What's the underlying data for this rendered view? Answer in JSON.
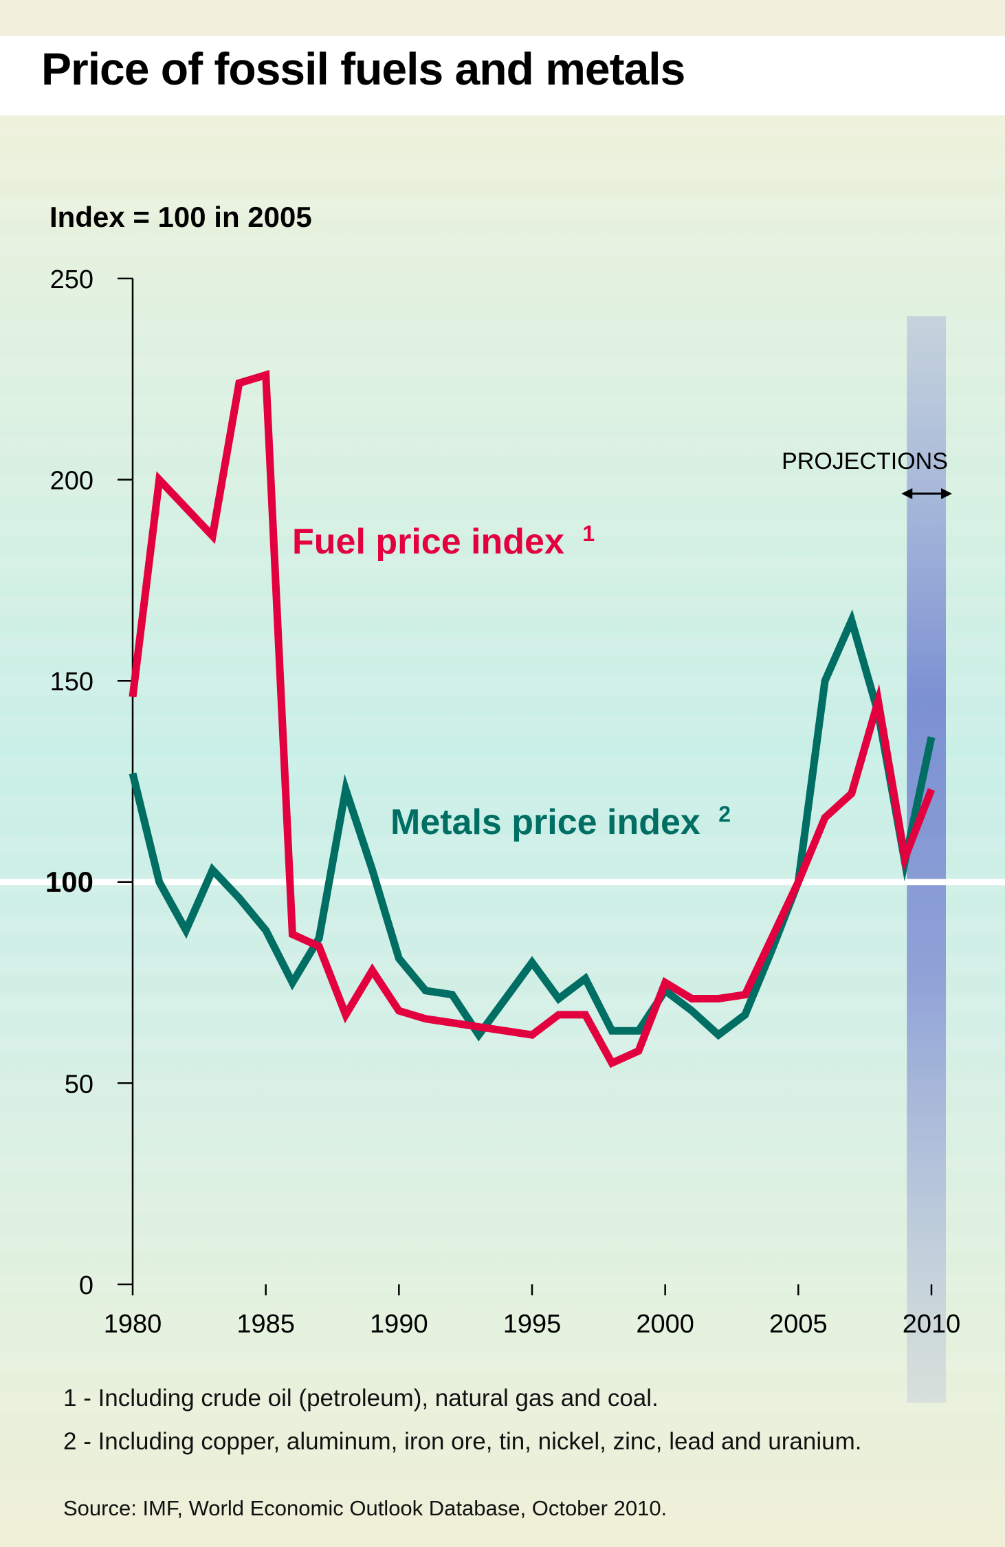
{
  "title": "Price of fossil fuels and metals",
  "footnotes": [
    "1 - Including crude oil (petroleum), natural gas and coal.",
    "2 - Including copper, aluminum, iron ore, tin, nickel, zinc, lead and uranium."
  ],
  "source": "Source: IMF, World Economic Outlook Database, October 2010.",
  "colors": {
    "fuel": "#e3003f",
    "metals": "#006e63",
    "projection_band": "#7f8fd0",
    "background": "#c8efe8"
  },
  "chart_data": {
    "type": "line",
    "ylabel": "Index = 100 in 2005",
    "ylim": [
      0,
      250
    ],
    "yticks": [
      "0",
      "50",
      "100",
      "150",
      "200",
      "250"
    ],
    "xlim": [
      1980,
      2010
    ],
    "xticks": [
      "1980",
      "1985",
      "1990",
      "1995",
      "2000",
      "2005",
      "2010"
    ],
    "reference_line": 100,
    "projection": {
      "label": "PROJECTIONS",
      "from": 2009,
      "to": 2010
    },
    "x": [
      1980,
      1981,
      1982,
      1983,
      1984,
      1985,
      1986,
      1987,
      1988,
      1989,
      1990,
      1991,
      1992,
      1993,
      1994,
      1995,
      1996,
      1997,
      1998,
      1999,
      2000,
      2001,
      2002,
      2003,
      2004,
      2005,
      2006,
      2007,
      2008,
      2009,
      2010
    ],
    "series": [
      {
        "name": "Fuel price index",
        "note": "1",
        "values": [
          146,
          200,
          193,
          186,
          224,
          226,
          87,
          84,
          67,
          78,
          68,
          66,
          65,
          64,
          63,
          62,
          67,
          67,
          55,
          58,
          75,
          71,
          71,
          72,
          86,
          100,
          116,
          122,
          145,
          106,
          123
        ]
      },
      {
        "name": "Metals price index",
        "note": "2",
        "values": [
          127,
          100,
          88,
          103,
          96,
          88,
          75,
          86,
          123,
          103,
          81,
          73,
          72,
          62,
          71,
          80,
          71,
          76,
          63,
          63,
          73,
          68,
          62,
          67,
          83,
          100,
          150,
          165,
          142,
          105,
          136
        ]
      }
    ]
  }
}
